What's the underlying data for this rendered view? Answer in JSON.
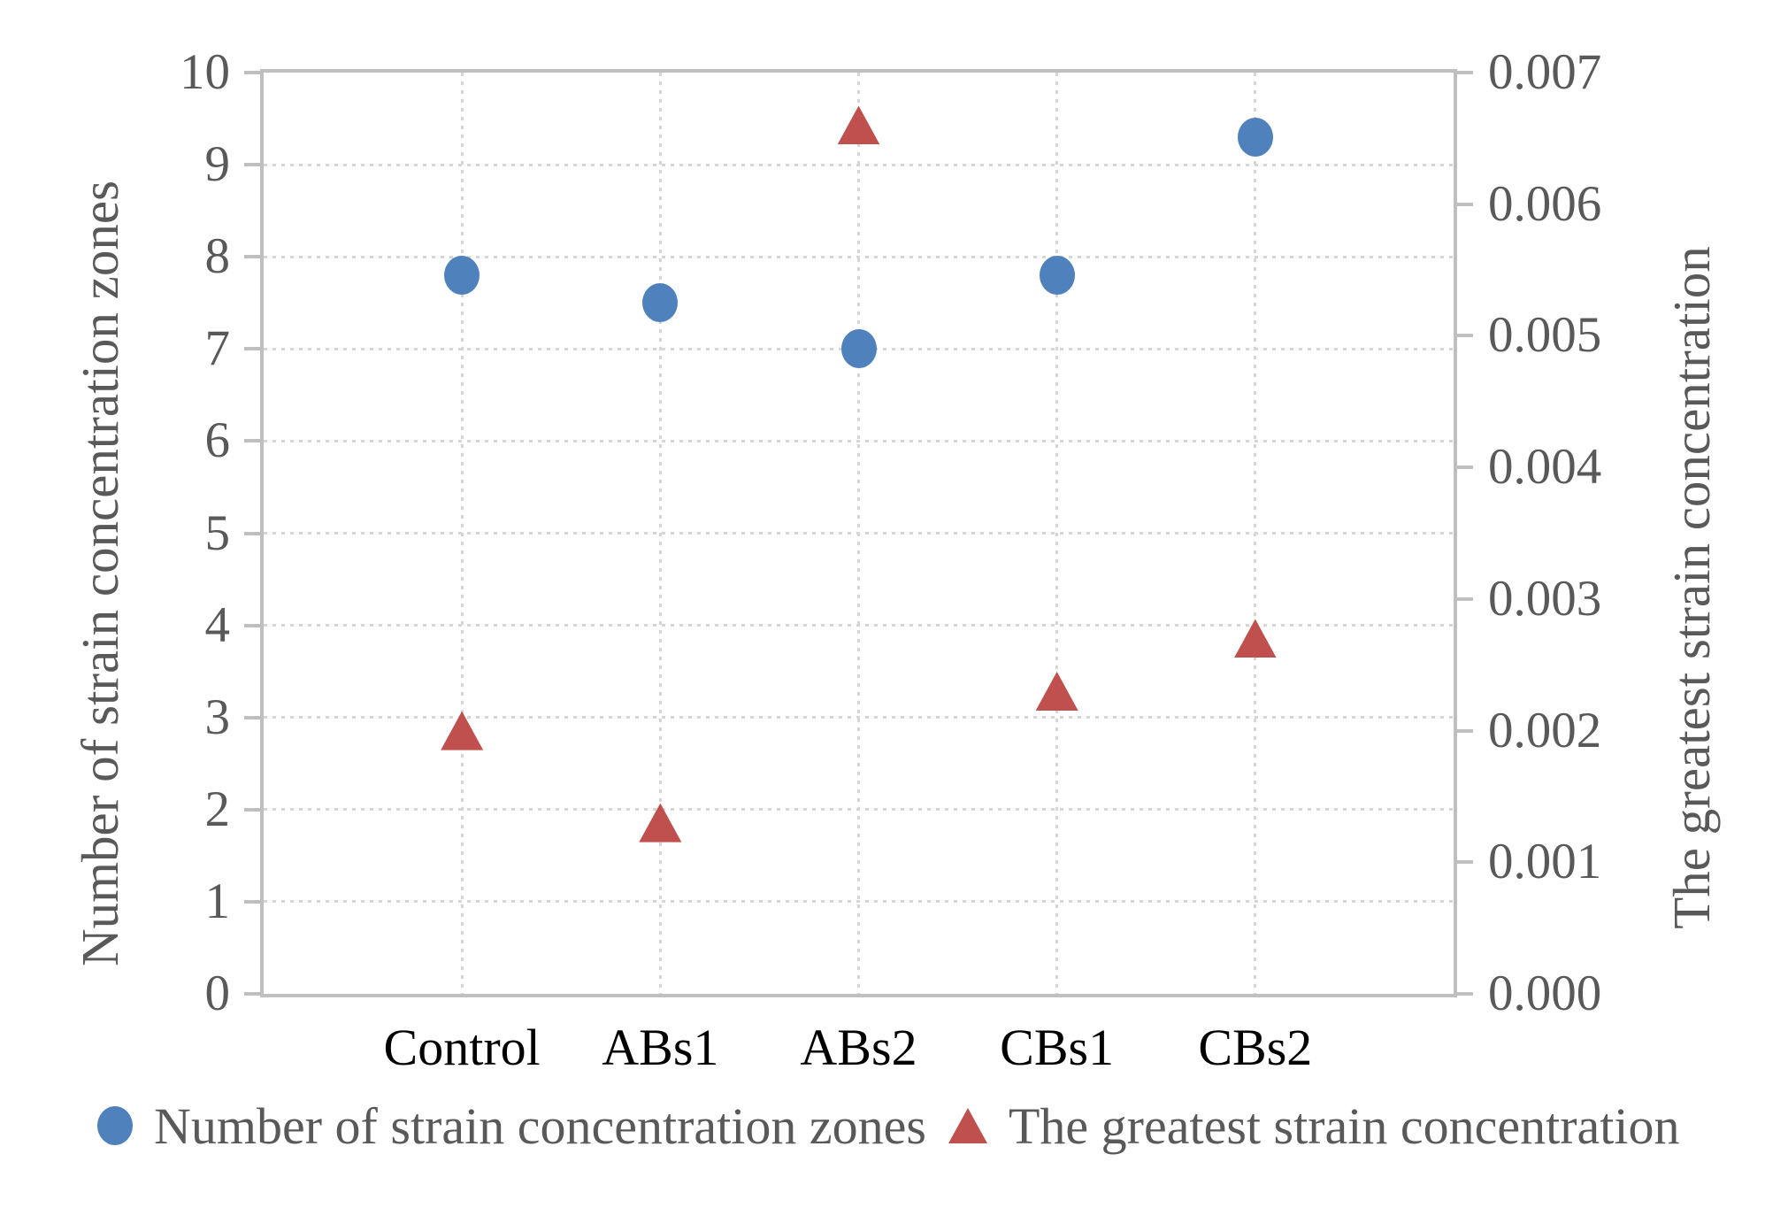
{
  "chart_data": {
    "type": "scatter",
    "categories": [
      "Control",
      "ABs1",
      "ABs2",
      "CBs1",
      "CBs2"
    ],
    "series": [
      {
        "name": "Number of strain concentration zones",
        "axis": "left",
        "marker": "circle",
        "color": "#4F81BD",
        "values": [
          7.8,
          7.5,
          7.0,
          7.8,
          9.3
        ]
      },
      {
        "name": "The greatest strain concentration",
        "axis": "right",
        "marker": "triangle",
        "color": "#C0504D",
        "values": [
          0.002,
          0.0013,
          0.0066,
          0.0023,
          0.0027
        ]
      }
    ],
    "left_axis": {
      "label": "Number of strain concentration zones",
      "min": 0,
      "max": 10,
      "step": 1,
      "decimals": 0
    },
    "right_axis": {
      "label": "The greatest strain concentration",
      "min": 0,
      "max": 0.007,
      "step": 0.001,
      "decimals": 3
    },
    "grid": true,
    "legend_position": "bottom"
  },
  "style_colors": {
    "axis_line": "#bfbfbf",
    "gridline": "#d6d6d6",
    "tick_text": "#595959",
    "category_text": "#000000",
    "series_blue": "#4F81BD",
    "series_red": "#C0504D"
  }
}
